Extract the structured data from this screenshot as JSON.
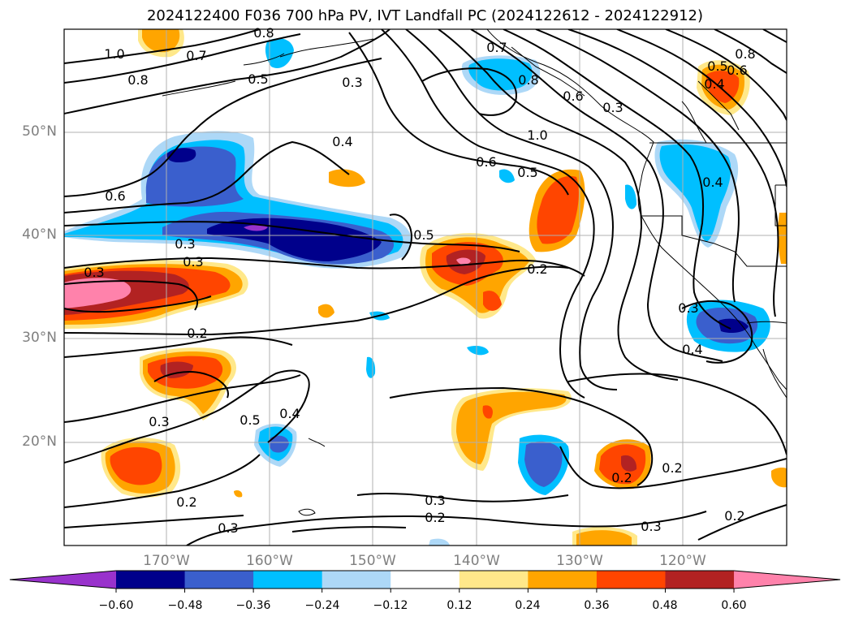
{
  "title": "2024122400 F036 700 hPa PV, IVT Landfall PC (2024122612 - 2024122912)",
  "map": {
    "lat_labels": [
      "50°N",
      "40°N",
      "30°N",
      "20°N"
    ],
    "lon_labels": [
      "170°W",
      "160°W",
      "150°W",
      "140°W",
      "130°W",
      "120°W"
    ]
  },
  "colorbar": {
    "tick_labels": [
      "−0.60",
      "−0.48",
      "−0.36",
      "−0.24",
      "−0.12",
      "0.12",
      "0.24",
      "0.36",
      "0.48",
      "0.60"
    ],
    "colors": [
      "#9932cc",
      "#00008b",
      "#3a5fcd",
      "#00bfff",
      "#add8f7",
      "#ffffff",
      "#ffe88a",
      "#ffa500",
      "#ff4500",
      "#b22222",
      "#ff82ab"
    ]
  },
  "contour_labels": [
    "1.0",
    "0.8",
    "0.7",
    "0.8",
    "0.5",
    "0.3",
    "0.7",
    "0.8",
    "0.6",
    "0.3",
    "1.0",
    "0.4",
    "0.6",
    "0.5",
    "0.3",
    "0.5",
    "0.2",
    "0.3",
    "0.2",
    "0.3",
    "0.5",
    "0.4",
    "0.3",
    "0.2",
    "0.3",
    "0.2",
    "0.3",
    "0.2",
    "0.2",
    "0.3",
    "0.2",
    "0.8",
    "0.6",
    "0.5",
    "0.4",
    "0.4",
    "0.3",
    "0.4",
    "0.6"
  ]
}
